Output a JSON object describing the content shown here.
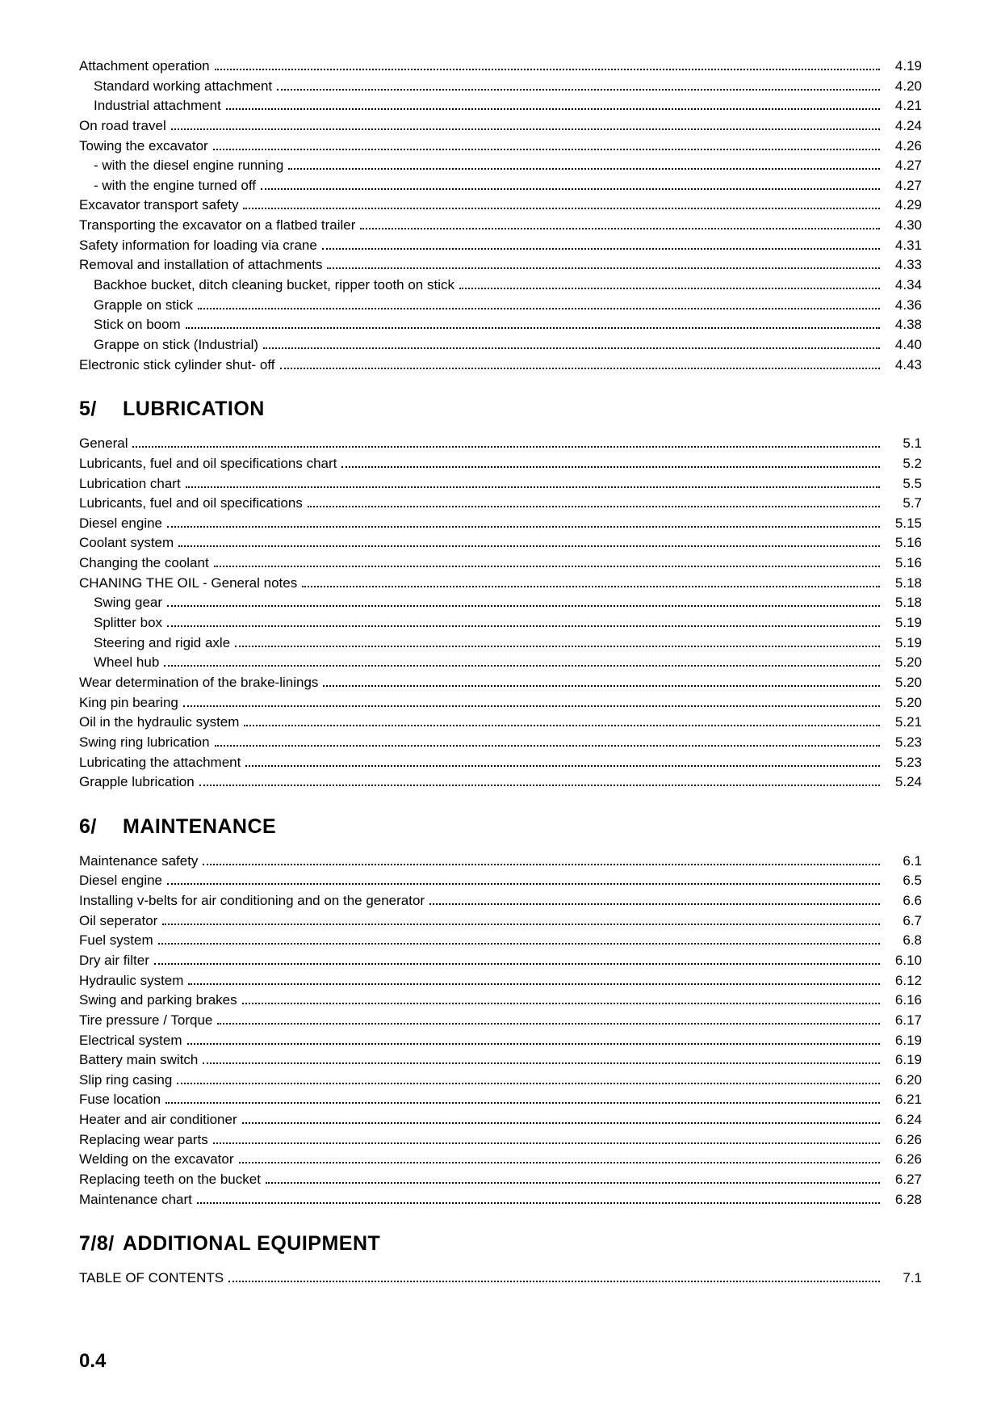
{
  "page_number": "0.4",
  "preamble": [
    {
      "label": "Attachment operation",
      "page": "4.19",
      "indent": 0
    },
    {
      "label": "Standard working attachment",
      "page": "4.20",
      "indent": 1
    },
    {
      "label": "Industrial attachment",
      "page": "4.21",
      "indent": 1
    },
    {
      "label": "On road travel",
      "page": "4.24",
      "indent": 0
    },
    {
      "label": "Towing the excavator",
      "page": "4.26",
      "indent": 0
    },
    {
      "label": "- with the diesel engine running",
      "page": "4.27",
      "indent": 1
    },
    {
      "label": "- with the engine turned off",
      "page": "4.27",
      "indent": 1
    },
    {
      "label": "Excavator transport safety",
      "page": "4.29",
      "indent": 0
    },
    {
      "label": "Transporting the excavator on a flatbed trailer",
      "page": "4.30",
      "indent": 0
    },
    {
      "label": "Safety information for loading via crane",
      "page": "4.31",
      "indent": 0
    },
    {
      "label": "Removal and installation of attachments",
      "page": "4.33",
      "indent": 0
    },
    {
      "label": "Backhoe bucket, ditch cleaning bucket, ripper tooth on stick",
      "page": "4.34",
      "indent": 1
    },
    {
      "label": "Grapple on stick",
      "page": "4.36",
      "indent": 1
    },
    {
      "label": "Stick on boom",
      "page": "4.38",
      "indent": 1
    },
    {
      "label": "Grappe on stick (Industrial)",
      "page": "4.40",
      "indent": 1
    },
    {
      "label": "Electronic stick cylinder shut- off",
      "page": "4.43",
      "indent": 0
    }
  ],
  "sections": [
    {
      "number": "5/",
      "title": "LUBRICATION",
      "items": [
        {
          "label": "General",
          "page": "5.1",
          "indent": 0
        },
        {
          "label": "Lubricants, fuel and oil specifications chart",
          "page": "5.2",
          "indent": 0
        },
        {
          "label": "Lubrication chart",
          "page": "5.5",
          "indent": 0
        },
        {
          "label": "Lubricants, fuel and oil specifications",
          "page": "5.7",
          "indent": 0
        },
        {
          "label": "Diesel engine",
          "page": "5.15",
          "indent": 0
        },
        {
          "label": "Coolant system",
          "page": "5.16",
          "indent": 0
        },
        {
          "label": "Changing the coolant",
          "page": "5.16",
          "indent": 0
        },
        {
          "label": "CHANING THE OIL - General notes",
          "page": "5.18",
          "indent": 0
        },
        {
          "label": "Swing gear",
          "page": "5.18",
          "indent": 1
        },
        {
          "label": "Splitter box",
          "page": "5.19",
          "indent": 1
        },
        {
          "label": "Steering and rigid axle",
          "page": "5.19",
          "indent": 1
        },
        {
          "label": "Wheel hub",
          "page": "5.20",
          "indent": 1
        },
        {
          "label": "Wear determination of the brake-linings",
          "page": "5.20",
          "indent": 0
        },
        {
          "label": "King pin bearing",
          "page": "5.20",
          "indent": 0
        },
        {
          "label": "Oil in the hydraulic system",
          "page": "5.21",
          "indent": 0
        },
        {
          "label": "Swing ring lubrication",
          "page": "5.23",
          "indent": 0
        },
        {
          "label": "Lubricating the attachment",
          "page": "5.23",
          "indent": 0
        },
        {
          "label": "Grapple lubrication",
          "page": "5.24",
          "indent": 0
        }
      ]
    },
    {
      "number": "6/",
      "title": "MAINTENANCE",
      "items": [
        {
          "label": "Maintenance safety",
          "page": "6.1",
          "indent": 0
        },
        {
          "label": "Diesel engine",
          "page": "6.5",
          "indent": 0
        },
        {
          "label": "Installing v-belts for air conditioning and on the generator",
          "page": "6.6",
          "indent": 0
        },
        {
          "label": "Oil seperator",
          "page": "6.7",
          "indent": 0
        },
        {
          "label": "Fuel system",
          "page": "6.8",
          "indent": 0
        },
        {
          "label": "Dry air filter",
          "page": "6.10",
          "indent": 0
        },
        {
          "label": "Hydraulic system",
          "page": "6.12",
          "indent": 0
        },
        {
          "label": "Swing and parking brakes",
          "page": "6.16",
          "indent": 0
        },
        {
          "label": "Tire pressure / Torque",
          "page": "6.17",
          "indent": 0
        },
        {
          "label": "Electrical system",
          "page": "6.19",
          "indent": 0
        },
        {
          "label": "Battery main switch",
          "page": "6.19",
          "indent": 0
        },
        {
          "label": "Slip ring casing",
          "page": "6.20",
          "indent": 0
        },
        {
          "label": "Fuse location",
          "page": "6.21",
          "indent": 0
        },
        {
          "label": "Heater and air conditioner",
          "page": "6.24",
          "indent": 0
        },
        {
          "label": "Replacing wear parts",
          "page": "6.26",
          "indent": 0
        },
        {
          "label": "Welding on the excavator",
          "page": "6.26",
          "indent": 0
        },
        {
          "label": "Replacing teeth on the bucket",
          "page": "6.27",
          "indent": 0
        },
        {
          "label": "Maintenance chart",
          "page": "6.28",
          "indent": 0
        }
      ]
    },
    {
      "number": "7/8/",
      "title": "ADDITIONAL EQUIPMENT",
      "items": [
        {
          "label": "TABLE OF CONTENTS",
          "page": "7.1",
          "indent": 0
        }
      ]
    }
  ],
  "style": {
    "body_font_size": 17,
    "heading_font_size": 25,
    "text_color": "#000000",
    "background_color": "#ffffff",
    "line_height": 1.45
  }
}
